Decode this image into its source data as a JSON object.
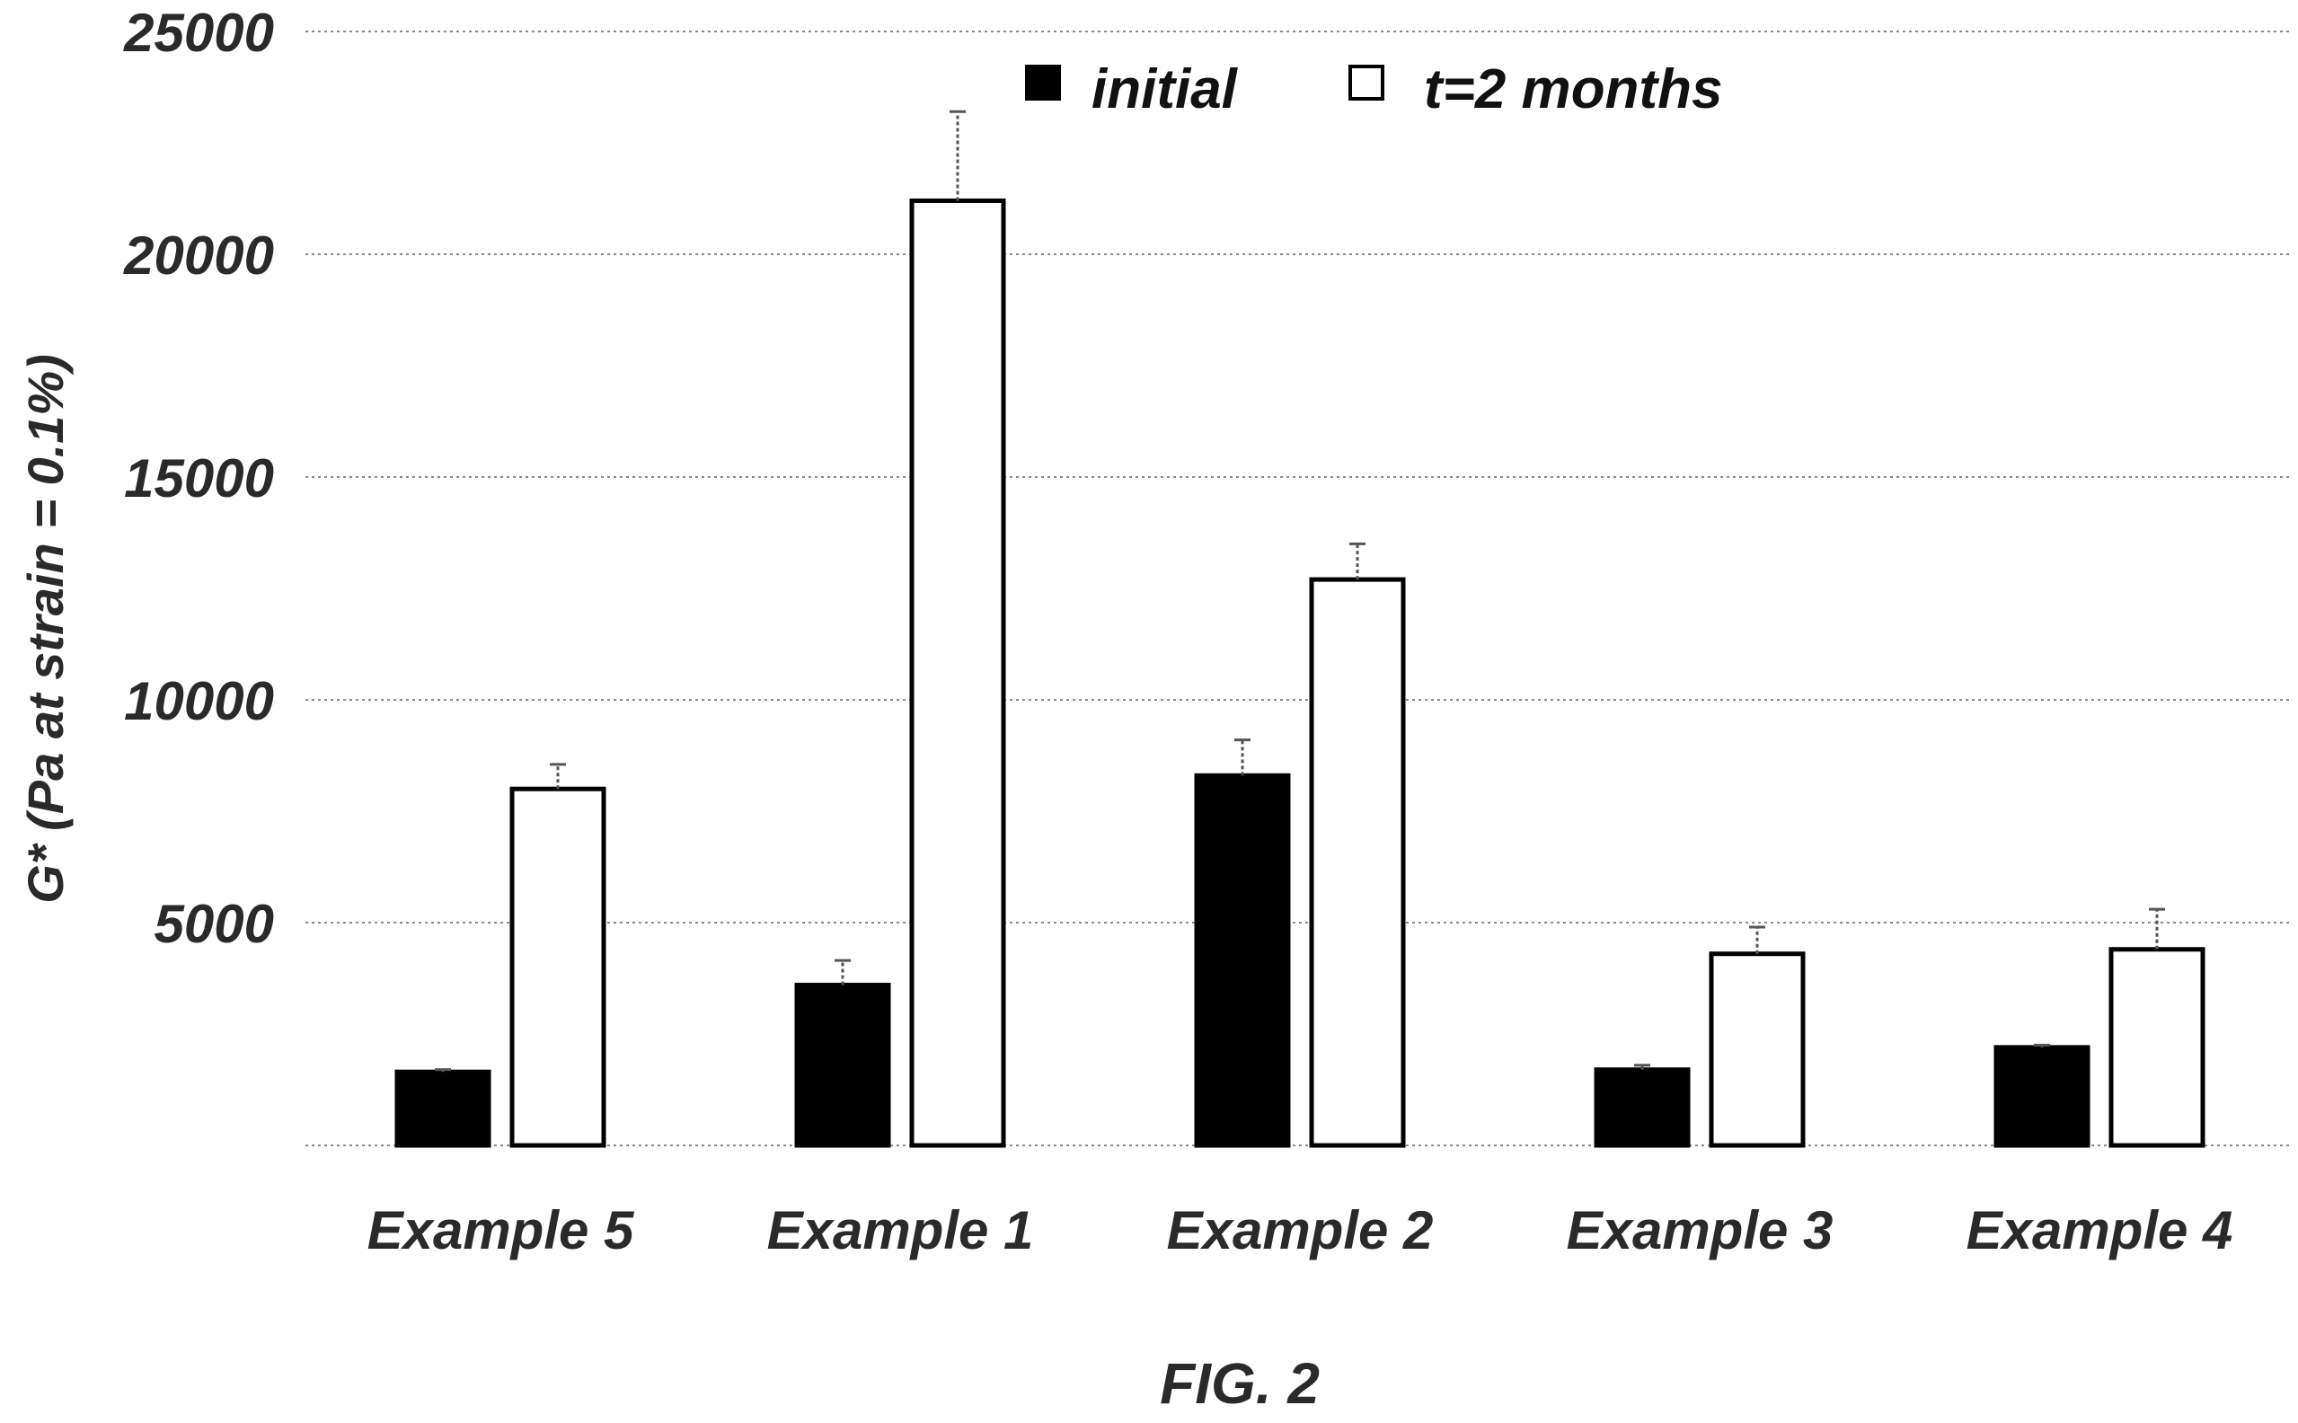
{
  "chart_data": {
    "type": "bar",
    "ylabel": "G* (Pa at strain = 0.1%)",
    "caption": "FIG. 2",
    "ylim": [
      0,
      25000
    ],
    "yticks": [
      5000,
      10000,
      15000,
      20000,
      25000
    ],
    "grid": true,
    "legend_placement": "top-center",
    "categories": [
      "Example 5",
      "Example 1",
      "Example 2",
      "Example 3",
      "Example 4"
    ],
    "series": [
      {
        "name": "initial",
        "color": "#000000",
        "values": [
          1650,
          3600,
          8300,
          1700,
          2200
        ],
        "errors": [
          50,
          550,
          800,
          100,
          50
        ]
      },
      {
        "name": "t=2 months",
        "color": "#ffffff",
        "values": [
          8000,
          21200,
          12700,
          4300,
          4400
        ],
        "errors": [
          550,
          2000,
          800,
          600,
          900
        ]
      }
    ]
  }
}
